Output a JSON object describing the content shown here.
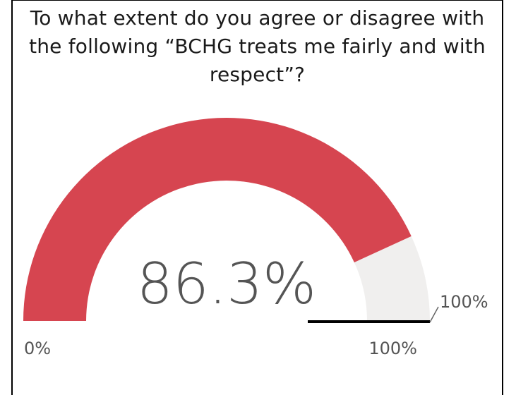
{
  "title": "To what extent do you agree or disagree with the following “BCHG treats me fairly and with respect”?",
  "chart_data": {
    "type": "gauge",
    "value": 86.3,
    "value_label": "86.3%",
    "min": 0,
    "max": 100,
    "min_label": "0%",
    "max_label": "100%",
    "target": 100,
    "target_label": "100%",
    "colors": {
      "fill": "#D64550",
      "track": "#F0EFEE",
      "target": "#000000",
      "text": "#555555"
    }
  }
}
